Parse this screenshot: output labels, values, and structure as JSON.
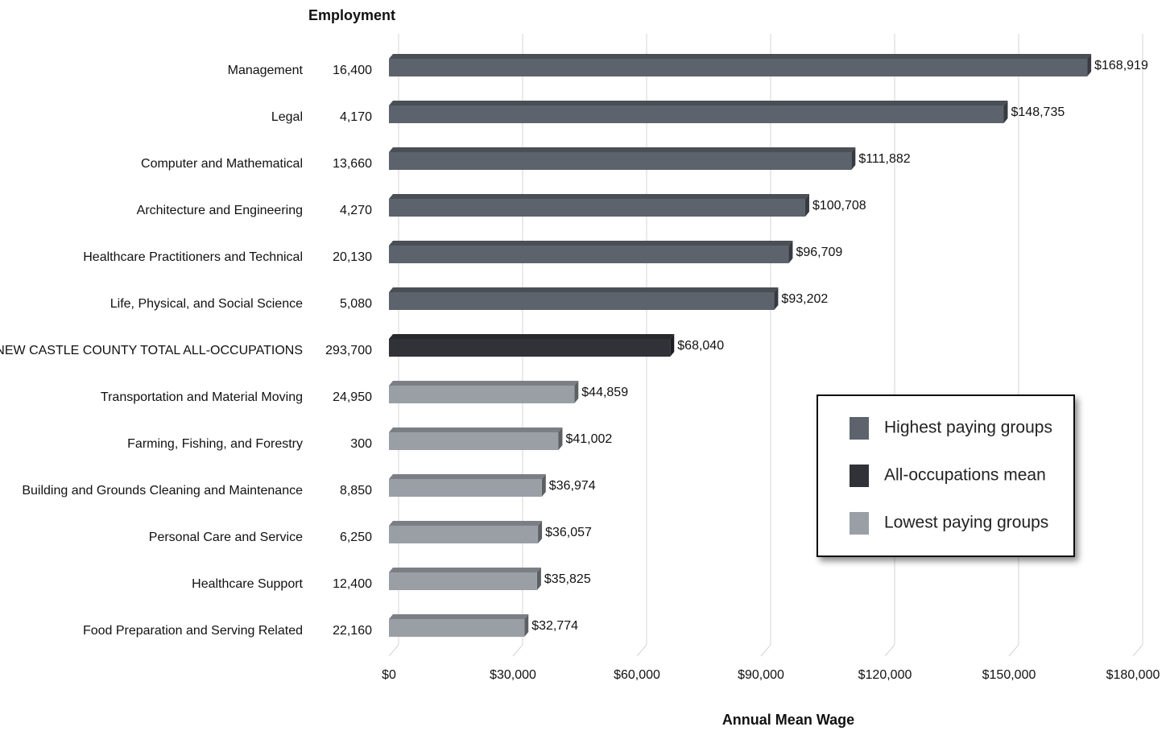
{
  "chart_data": {
    "type": "bar",
    "orientation": "horizontal",
    "employment_title": "Employment",
    "x_label": "Annual Mean Wage",
    "categories": [
      "Management",
      "Legal",
      "Computer and Mathematical",
      "Architecture and Engineering",
      "Healthcare Practitioners and Technical",
      "Life, Physical, and Social Science",
      "NEW CASTLE COUNTY TOTAL ALL-OCCUPATIONS",
      "Transportation and Material Moving",
      "Farming, Fishing, and Forestry",
      "Building and Grounds Cleaning and Maintenance",
      "Personal Care and Service",
      "Healthcare Support",
      "Food Preparation and Serving Related"
    ],
    "employment": [
      "16,400",
      "4,170",
      "13,660",
      "4,270",
      "20,130",
      "5,080",
      "293,700",
      "24,950",
      "300",
      "8,850",
      "6,250",
      "12,400",
      "22,160"
    ],
    "series": [
      {
        "name": "Highest paying groups",
        "color": "#5c636c",
        "values": [
          168919,
          148735,
          111882,
          100708,
          96709,
          93202,
          null,
          null,
          null,
          null,
          null,
          null,
          null
        ],
        "value_labels": [
          "$168,919",
          "$148,735",
          "$111,882",
          "$100,708",
          "$96,709",
          "$93,202",
          null,
          null,
          null,
          null,
          null,
          null,
          null
        ]
      },
      {
        "name": "All-occupations mean",
        "color": "#303237",
        "values": [
          null,
          null,
          null,
          null,
          null,
          null,
          68040,
          null,
          null,
          null,
          null,
          null,
          null
        ],
        "value_labels": [
          null,
          null,
          null,
          null,
          null,
          null,
          "$68,040",
          null,
          null,
          null,
          null,
          null,
          null
        ]
      },
      {
        "name": "Lowest paying groups",
        "color": "#9a9fa6",
        "values": [
          null,
          null,
          null,
          null,
          null,
          null,
          null,
          44859,
          41002,
          36974,
          36057,
          35825,
          32774
        ],
        "value_labels": [
          null,
          null,
          null,
          null,
          null,
          null,
          null,
          "$44,859",
          "$41,002",
          "$36,974",
          "$36,057",
          "$35,825",
          "$32,774"
        ]
      }
    ],
    "xlim": [
      0,
      180000
    ],
    "xticks": [
      {
        "value": 0,
        "label": "$0"
      },
      {
        "value": 30000,
        "label": "$30,000"
      },
      {
        "value": 60000,
        "label": "$60,000"
      },
      {
        "value": 90000,
        "label": "$90,000"
      },
      {
        "value": 120000,
        "label": "$120,000"
      },
      {
        "value": 150000,
        "label": "$150,000"
      },
      {
        "value": 180000,
        "label": "$180,000"
      }
    ],
    "grid": true,
    "legend": "right"
  }
}
